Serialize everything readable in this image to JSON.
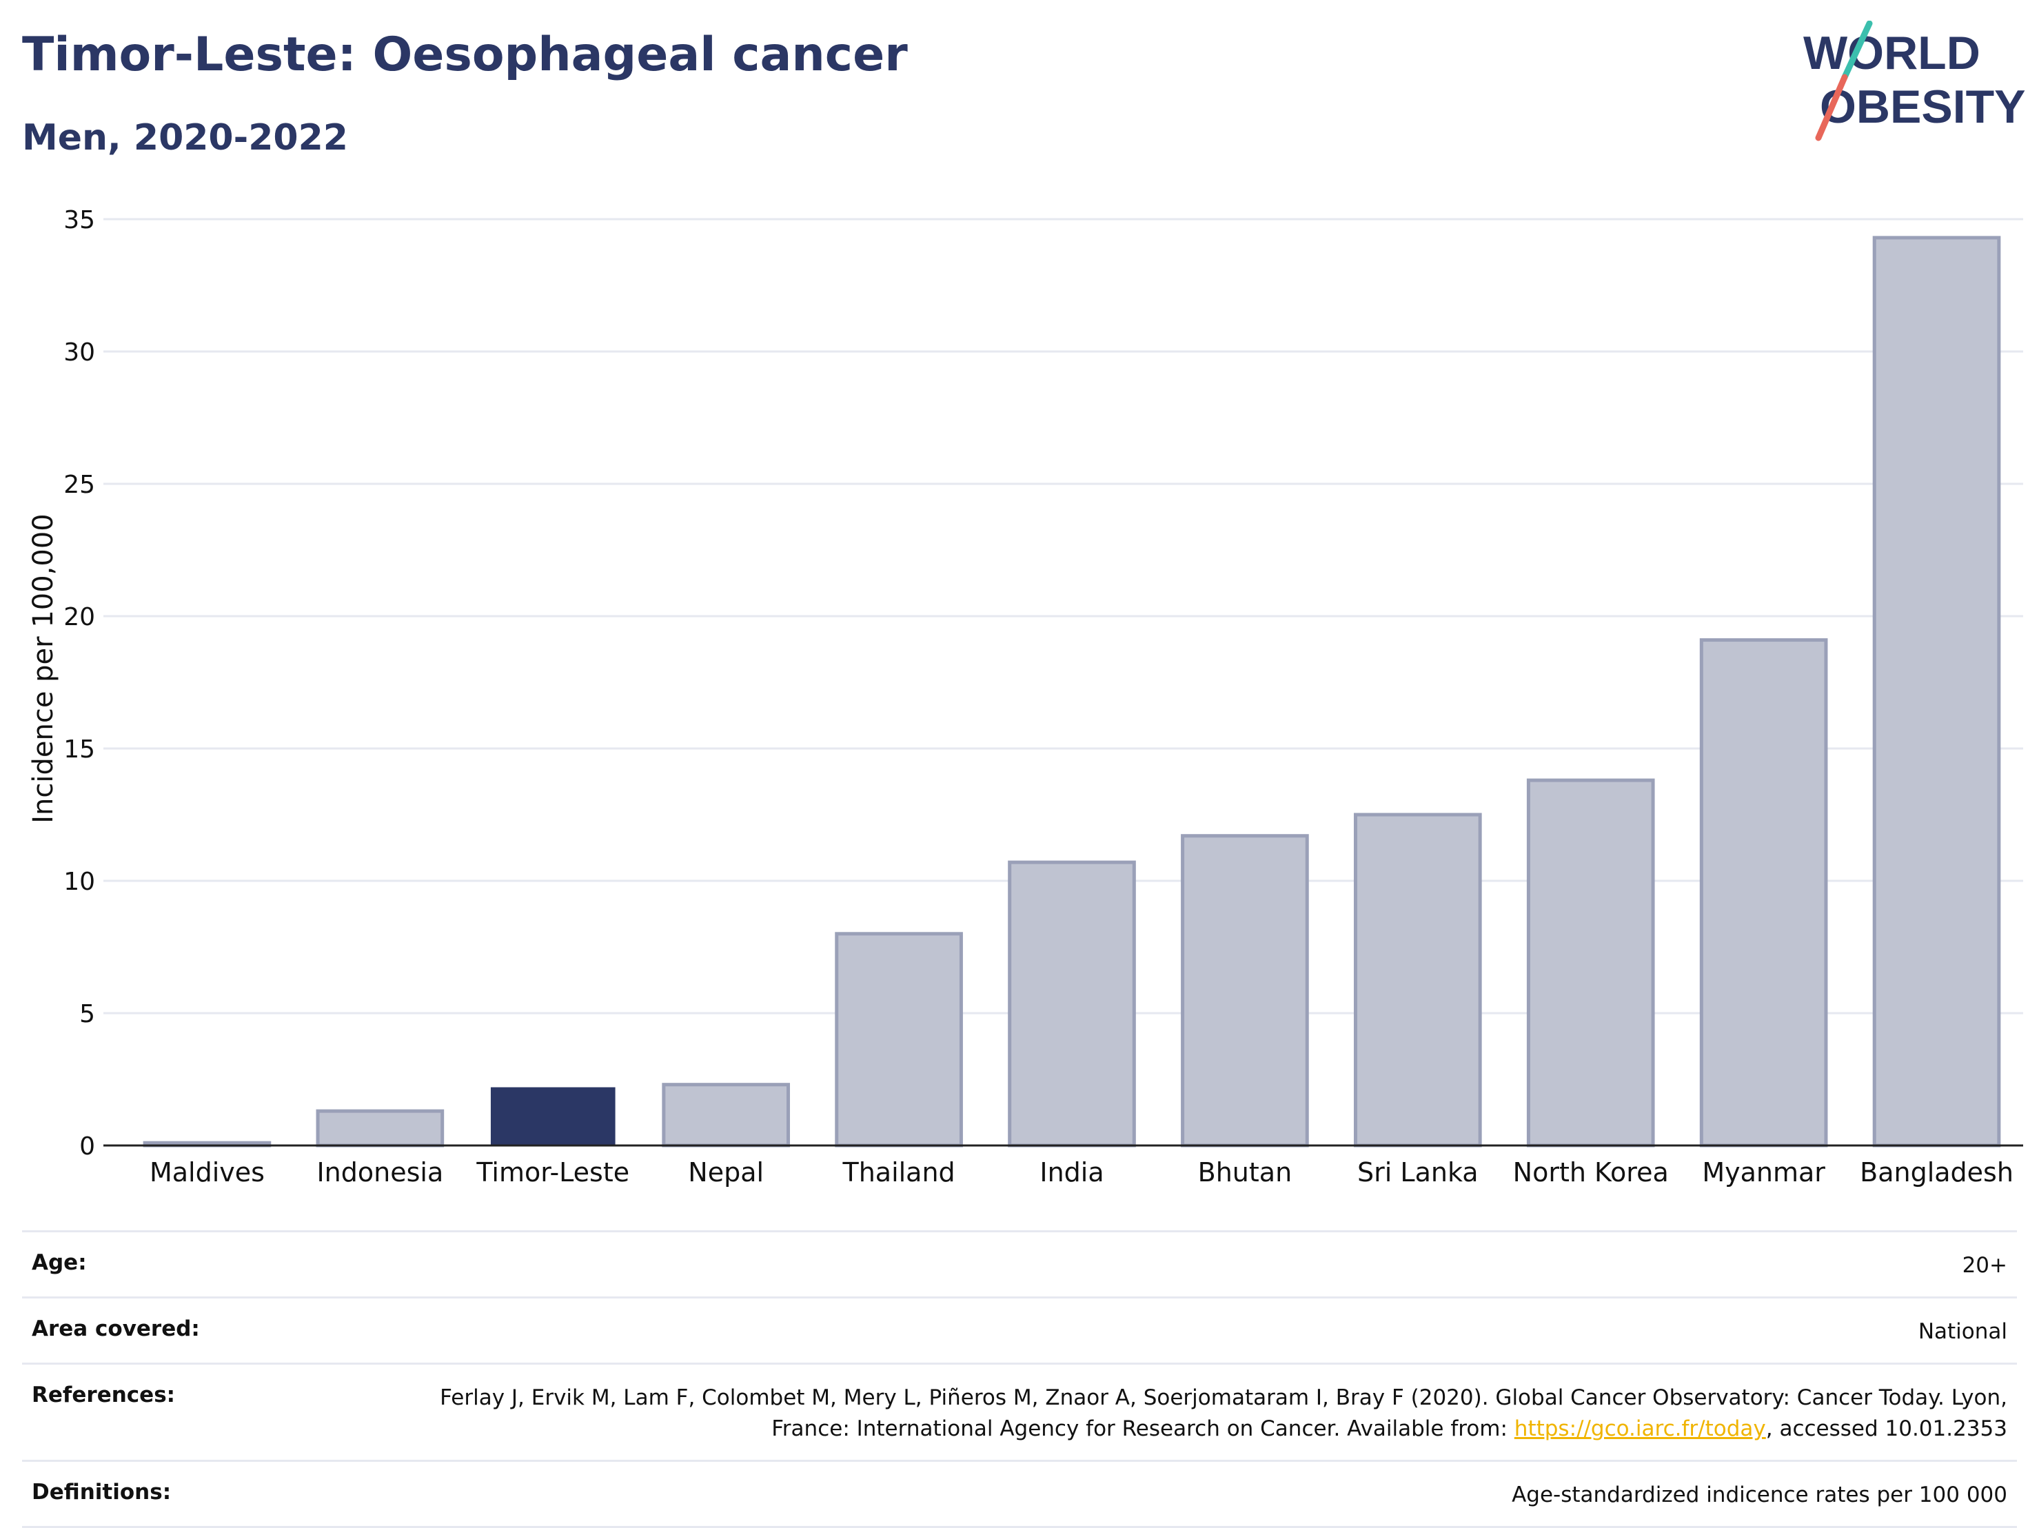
{
  "header": {
    "title": "Timor-Leste: Oesophageal cancer",
    "subtitle": "Men, 2020-2022"
  },
  "logo": {
    "line1": "WORLD",
    "line2": "OBESITY"
  },
  "colors": {
    "highlight": "#2b3765",
    "bar": "#bfc3d1",
    "bar_edge": "#9aa0b8",
    "grid": "#e6e8f0",
    "accent_teal": "#3bbfad",
    "accent_red": "#e8675a"
  },
  "chart_data": {
    "type": "bar",
    "categories": [
      "Maldives",
      "Indonesia",
      "Timor-Leste",
      "Nepal",
      "Thailand",
      "India",
      "Bhutan",
      "Sri Lanka",
      "North Korea",
      "Myanmar",
      "Bangladesh"
    ],
    "values": [
      0.1,
      1.3,
      2.2,
      2.3,
      8.0,
      10.7,
      11.7,
      12.5,
      13.8,
      19.1,
      34.3
    ],
    "highlight": "Timor-Leste",
    "ylabel": "Incidence per 100,000",
    "xlabel": "",
    "ylim": [
      0,
      35
    ],
    "yticks": [
      0,
      5,
      10,
      15,
      20,
      25,
      30,
      35
    ],
    "grid": true
  },
  "info": {
    "age_label": "Age:",
    "age_value": "20+",
    "area_label": "Area covered:",
    "area_value": "National",
    "references_label": "References:",
    "references_text_1": "Ferlay J, Ervik M, Lam F, Colombet M, Mery L, Piñeros M, Znaor A, Soerjomataram I, Bray F (2020). Global Cancer Observatory: Cancer Today. Lyon, France: International Agency for Research on Cancer. Available from: ",
    "references_link": "https://gco.iarc.fr/today",
    "references_text_2": ", accessed 10.01.2353",
    "definitions_label": "Definitions:",
    "definitions_value": "Age-standardized indicence rates per 100 000"
  }
}
